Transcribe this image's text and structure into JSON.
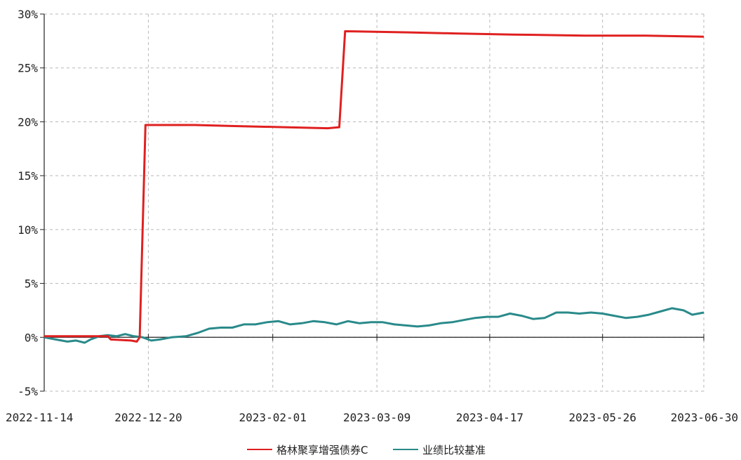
{
  "chart_data": {
    "type": "line",
    "title": "",
    "xlabel": "",
    "ylabel": "",
    "x_tick_labels": [
      "2022-11-14",
      "2022-12-20",
      "2023-02-01",
      "2023-03-09",
      "2023-04-17",
      "2023-05-26",
      "2023-06-30"
    ],
    "y_tick_labels": [
      "-5%",
      "0%",
      "5%",
      "10%",
      "15%",
      "20%",
      "25%",
      "30%"
    ],
    "y_ticks": [
      -5,
      0,
      5,
      10,
      15,
      20,
      25,
      30
    ],
    "ylim": [
      -5,
      30
    ],
    "xlim": [
      "2022-11-14",
      "2023-06-30"
    ],
    "grid": true,
    "legend_position": "bottom",
    "series": [
      {
        "name": "格林聚享增强债券C",
        "color": "#e02020",
        "points": [
          [
            "2022-11-14",
            0.1
          ],
          [
            "2022-11-30",
            0.1
          ],
          [
            "2022-12-06",
            0.1
          ],
          [
            "2022-12-07",
            -0.2
          ],
          [
            "2022-12-14",
            -0.3
          ],
          [
            "2022-12-16",
            -0.4
          ],
          [
            "2022-12-17",
            0.0
          ],
          [
            "2022-12-19",
            19.7
          ],
          [
            "2023-01-05",
            19.7
          ],
          [
            "2023-01-20",
            19.6
          ],
          [
            "2023-02-05",
            19.5
          ],
          [
            "2023-02-20",
            19.4
          ],
          [
            "2023-02-24",
            19.5
          ],
          [
            "2023-02-26",
            28.4
          ],
          [
            "2023-03-20",
            28.3
          ],
          [
            "2023-04-05",
            28.2
          ],
          [
            "2023-04-25",
            28.1
          ],
          [
            "2023-05-20",
            28.0
          ],
          [
            "2023-06-10",
            28.0
          ],
          [
            "2023-06-30",
            27.9
          ]
        ]
      },
      {
        "name": "业绩比较基准",
        "color": "#2a8a8a",
        "points": [
          [
            "2022-11-14",
            0.0
          ],
          [
            "2022-11-18",
            -0.2
          ],
          [
            "2022-11-22",
            -0.4
          ],
          [
            "2022-11-25",
            -0.3
          ],
          [
            "2022-11-28",
            -0.5
          ],
          [
            "2022-11-30",
            -0.2
          ],
          [
            "2022-12-03",
            0.1
          ],
          [
            "2022-12-06",
            0.2
          ],
          [
            "2022-12-09",
            0.1
          ],
          [
            "2022-12-12",
            0.3
          ],
          [
            "2022-12-15",
            0.1
          ],
          [
            "2022-12-18",
            0.0
          ],
          [
            "2022-12-21",
            -0.3
          ],
          [
            "2022-12-24",
            -0.2
          ],
          [
            "2022-12-28",
            0.0
          ],
          [
            "2023-01-02",
            0.1
          ],
          [
            "2023-01-06",
            0.4
          ],
          [
            "2023-01-10",
            0.8
          ],
          [
            "2023-01-14",
            0.9
          ],
          [
            "2023-01-18",
            0.9
          ],
          [
            "2023-01-22",
            1.2
          ],
          [
            "2023-01-26",
            1.2
          ],
          [
            "2023-01-30",
            1.4
          ],
          [
            "2023-02-03",
            1.5
          ],
          [
            "2023-02-07",
            1.2
          ],
          [
            "2023-02-11",
            1.3
          ],
          [
            "2023-02-15",
            1.5
          ],
          [
            "2023-02-19",
            1.4
          ],
          [
            "2023-02-23",
            1.2
          ],
          [
            "2023-02-27",
            1.5
          ],
          [
            "2023-03-03",
            1.3
          ],
          [
            "2023-03-07",
            1.4
          ],
          [
            "2023-03-11",
            1.4
          ],
          [
            "2023-03-15",
            1.2
          ],
          [
            "2023-03-19",
            1.1
          ],
          [
            "2023-03-23",
            1.0
          ],
          [
            "2023-03-27",
            1.1
          ],
          [
            "2023-03-31",
            1.3
          ],
          [
            "2023-04-04",
            1.4
          ],
          [
            "2023-04-08",
            1.6
          ],
          [
            "2023-04-12",
            1.8
          ],
          [
            "2023-04-16",
            1.9
          ],
          [
            "2023-04-20",
            1.9
          ],
          [
            "2023-04-24",
            2.2
          ],
          [
            "2023-04-28",
            2.0
          ],
          [
            "2023-05-02",
            1.7
          ],
          [
            "2023-05-06",
            1.8
          ],
          [
            "2023-05-10",
            2.3
          ],
          [
            "2023-05-14",
            2.3
          ],
          [
            "2023-05-18",
            2.2
          ],
          [
            "2023-05-22",
            2.3
          ],
          [
            "2023-05-26",
            2.2
          ],
          [
            "2023-05-30",
            2.0
          ],
          [
            "2023-06-03",
            1.8
          ],
          [
            "2023-06-07",
            1.9
          ],
          [
            "2023-06-11",
            2.1
          ],
          [
            "2023-06-15",
            2.4
          ],
          [
            "2023-06-19",
            2.7
          ],
          [
            "2023-06-23",
            2.5
          ],
          [
            "2023-06-26",
            2.1
          ],
          [
            "2023-06-30",
            2.3
          ]
        ]
      }
    ]
  }
}
